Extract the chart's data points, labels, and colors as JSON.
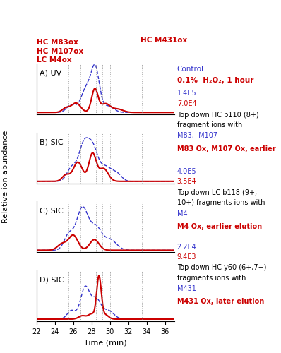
{
  "x_min": 22,
  "x_max": 37,
  "x_ticks": [
    22,
    24,
    26,
    28,
    30,
    32,
    34,
    36
  ],
  "vlines": [
    25.5,
    26.8,
    27.8,
    28.5,
    29.2,
    30.0,
    33.5
  ],
  "panel_labels": [
    "A) UV",
    "B) SIC",
    "C) SIC",
    "D) SIC"
  ],
  "top_labels": {
    "left_red": "HC M83ox\nHC M107ox\nLC M4ox",
    "right_red": "HC M431ox"
  },
  "legend_texts": [
    [
      "Control",
      "0.1%  H₂O₂, 1 hour"
    ],
    [
      "1.4E5",
      "7.0E4",
      "Top down HC b110 (8+)\nfragment ions with\nM83,  M107\nM83 Ox, M107 Ox, earlier"
    ],
    [
      "4.0E5",
      "3.5E4",
      "Top down LC b118 (9+,\n10+) fragments ions with\nM4\nM4 Ox, earlier elution"
    ],
    [
      "2.2E4",
      "9.4E3",
      "Top down HC y60 (6+,7+)\nfragments ions with\nM431\nM431 Ox, later elution"
    ]
  ],
  "ylabel": "Relative ion abundance",
  "xlabel": "Time (min)",
  "blue_color": "#3333cc",
  "red_color": "#cc0000",
  "dark_red": "#990000"
}
